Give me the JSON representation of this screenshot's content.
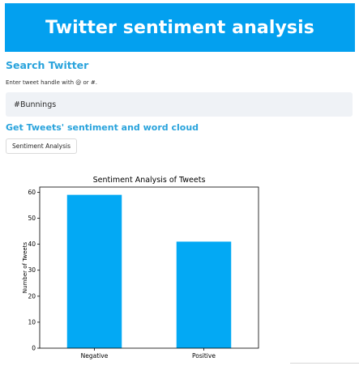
{
  "banner": {
    "title": "Twitter sentiment analysis"
  },
  "search": {
    "heading": "Search Twitter",
    "hint": "Enter tweet handle with @ or #.",
    "value": "#Bunnings"
  },
  "analysis": {
    "heading": "Get Tweets' sentiment and word cloud",
    "button_label": "Sentiment Analysis"
  },
  "colors": {
    "accent": "#03a0ef",
    "heading": "#29a3dc",
    "bar": "#03a9f4"
  },
  "chart_data": {
    "type": "bar",
    "title": "Sentiment Analysis of Tweets",
    "xlabel": "",
    "ylabel": "Number of Tweets",
    "categories": [
      "Negative",
      "Positive"
    ],
    "values": [
      59,
      41
    ],
    "ylim": [
      0,
      62
    ],
    "yticks": [
      0,
      10,
      20,
      30,
      40,
      50,
      60
    ],
    "grid": false
  }
}
